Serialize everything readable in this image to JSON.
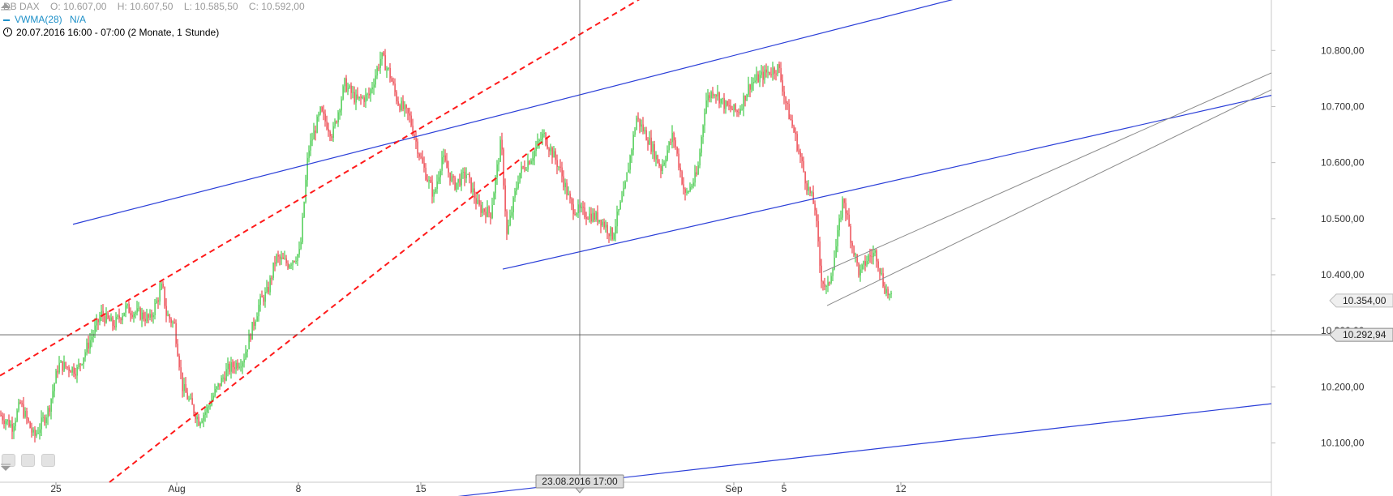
{
  "header": {
    "instrument": "DB DAX",
    "open": "O: 10.607,00",
    "high": "H: 10.607,50",
    "low": "L: 10.585,50",
    "close": "C: 10.592,00",
    "indicator": "VWMA(28)",
    "indicator_value": "N/A",
    "range": "20.07.2016 16:00 - 07:00 (2 Monate, 1 Stunde)"
  },
  "colors": {
    "up": "#22c02a",
    "down": "#e8202a",
    "trend_blue": "#2b3fd8",
    "channel_red": "#ff1a1a",
    "channel_gray": "#8a8a8a",
    "indicator": "#1e90c8"
  },
  "chart_data": {
    "type": "line",
    "title": "",
    "xlabel": "",
    "ylabel": "",
    "x_ticks": [
      "25",
      "Aug",
      "8",
      "15",
      "Sep",
      "5",
      "12"
    ],
    "y_ticks": [
      "10.800,00",
      "10.700,00",
      "10.600,00",
      "10.500,00",
      "10.400,00",
      "10.300,00",
      "10.200,00",
      "10.100,00"
    ],
    "ylim": [
      10030,
      10890
    ],
    "price_label": "10.354,00",
    "crosshair": {
      "value": 10292.94,
      "value_label": "10.292,94",
      "date_label": "23.08.2016 17:00"
    },
    "series": [
      {
        "x": [
          0,
          15,
          25,
          42,
          60,
          72,
          95,
          110,
          125,
          140,
          155,
          172,
          185,
          200,
          205,
          215,
          225,
          235,
          245,
          255,
          265,
          280,
          300,
          320,
          330,
          340,
          355,
          370,
          380,
          395,
          410,
          425,
          440,
          455,
          470,
          480,
          490,
          505,
          520,
          535,
          545,
          560,
          575,
          590,
          605,
          618,
          625,
          640,
          655,
          670,
          690,
          705,
          720,
          740,
          755,
          770,
          785,
          800,
          815,
          830,
          845,
          860,
          870,
          880,
          895,
          910,
          925,
          945,
          960,
          970,
          980,
          995,
          1005,
          1012,
          1020,
          1030,
          1040,
          1050,
          1060,
          1070,
          1080,
          1090,
          1100
        ],
        "values": [
          10150,
          10130,
          10170,
          10110,
          10160,
          10240,
          10230,
          10280,
          10330,
          10310,
          10340,
          10330,
          10320,
          10380,
          10330,
          10310,
          10200,
          10170,
          10140,
          10160,
          10190,
          10230,
          10250,
          10350,
          10370,
          10430,
          10420,
          10440,
          10620,
          10690,
          10650,
          10740,
          10710,
          10720,
          10790,
          10760,
          10710,
          10680,
          10600,
          10540,
          10610,
          10560,
          10580,
          10520,
          10510,
          10640,
          10470,
          10580,
          10610,
          10650,
          10590,
          10520,
          10510,
          10500,
          10470,
          10550,
          10680,
          10640,
          10590,
          10650,
          10540,
          10580,
          10710,
          10730,
          10700,
          10690,
          10740,
          10760,
          10770,
          10700,
          10650,
          10560,
          10520,
          10400,
          10370,
          10440,
          10540,
          10460,
          10400,
          10430,
          10440,
          10380,
          10354
        ]
      }
    ],
    "trend_lines_blue": [
      {
        "x": [
          90,
          1200
        ],
        "values": [
          10490,
          10900
        ]
      },
      {
        "x": [
          620,
          1568
        ],
        "values": [
          10410,
          10720
        ]
      },
      {
        "x": [
          355,
          1568
        ],
        "values": [
          9970,
          10170
        ]
      }
    ],
    "trend_lines_red": [
      {
        "x": [
          0,
          840
        ],
        "values": [
          10220,
          10935
        ]
      },
      {
        "x": [
          135,
          680
        ],
        "values": [
          10030,
          10650
        ]
      }
    ],
    "trend_lines_gray": [
      {
        "x": [
          1015,
          1568
        ],
        "values": [
          10405,
          10760
        ]
      },
      {
        "x": [
          1020,
          1568
        ],
        "values": [
          10345,
          10730
        ]
      }
    ]
  }
}
